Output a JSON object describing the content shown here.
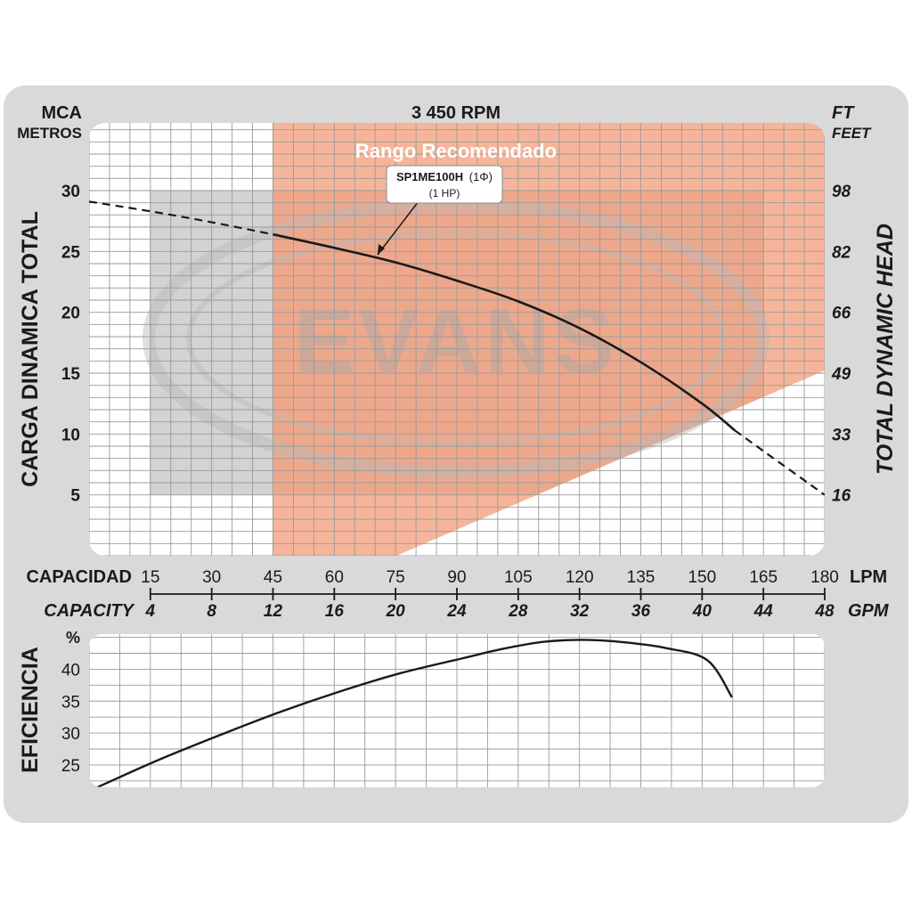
{
  "chart_data": [
    {
      "type": "line",
      "title": "3 450 RPM",
      "left_unit_top": "MCA",
      "left_unit_bottom": "METROS",
      "right_unit_top": "FT",
      "right_unit_bottom": "FEET",
      "ylabel": "CARGA  DINAMICA  TOTAL",
      "ylabel_right": "TOTAL  DYNAMIC  HEAD",
      "recommended_range_label": "Rango Recomendado",
      "watermark": "EVANS",
      "model_label": "SP1ME100H",
      "model_phase": "(1Φ)",
      "model_power": "(1 HP)",
      "xlim": [
        0,
        180
      ],
      "ylim": [
        0,
        30
      ],
      "x_ticks_lpm": [
        "15",
        "30",
        "45",
        "60",
        "75",
        "90",
        "105",
        "120",
        "135",
        "150",
        "165",
        "180"
      ],
      "x_ticks_gpm": [
        "4",
        "8",
        "12",
        "16",
        "20",
        "24",
        "28",
        "32",
        "36",
        "40",
        "44",
        "48"
      ],
      "x_label_lpm": "CAPACIDAD",
      "x_unit_lpm": "LPM",
      "x_label_gpm": "CAPACITY",
      "x_unit_gpm": "GPM",
      "y_ticks_left": [
        "5",
        "10",
        "15",
        "20",
        "25",
        "30"
      ],
      "y_ticks_right": [
        "16",
        "33",
        "49",
        "66",
        "82",
        "98"
      ],
      "recommended_range_lpm": [
        45,
        180
      ],
      "grid": true,
      "series": [
        {
          "name": "SP1ME100H",
          "x": [
            0,
            15,
            30,
            45,
            60,
            75,
            90,
            105,
            120,
            135,
            150,
            158,
            165,
            180
          ],
          "y": [
            29.1,
            28.3,
            27.4,
            26.4,
            25.3,
            24.1,
            22.6,
            20.9,
            18.7,
            15.9,
            12.5,
            10.3,
            8.6,
            5.0
          ]
        }
      ]
    },
    {
      "type": "line",
      "ylabel": "EFICIENCIA",
      "y_unit": "%",
      "y_ticks": [
        "25",
        "30",
        "35",
        "40"
      ],
      "xlim": [
        0,
        180
      ],
      "ylim": [
        21.5,
        45.5
      ],
      "grid": true,
      "series": [
        {
          "name": "",
          "x": [
            0,
            15,
            30,
            45,
            60,
            75,
            90,
            100,
            110,
            120,
            130,
            140,
            150,
            156
          ],
          "y": [
            21.3,
            25.6,
            29.5,
            33.2,
            36.5,
            39.4,
            41.7,
            43.2,
            44.3,
            44.6,
            44.2,
            43.3,
            41.4,
            35.6
          ]
        }
      ]
    }
  ]
}
